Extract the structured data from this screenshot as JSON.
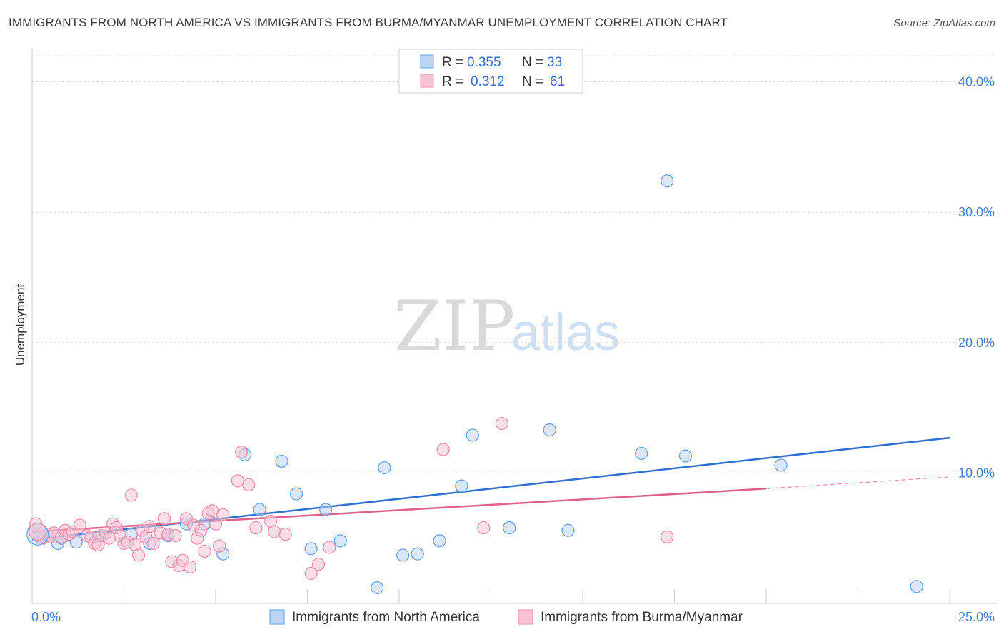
{
  "title": "IMMIGRANTS FROM NORTH AMERICA VS IMMIGRANTS FROM BURMA/MYANMAR UNEMPLOYMENT CORRELATION CHART",
  "source": "Source: ZipAtlas.com",
  "watermark": {
    "zip": "ZIP",
    "atlas": "atlas"
  },
  "legend": {
    "r_label": "R =",
    "n_label": "N =",
    "rows": [
      {
        "r": "0.355",
        "n": "33"
      },
      {
        "r": "0.312",
        "n": "61"
      }
    ]
  },
  "chart_data": {
    "type": "scatter",
    "title": "IMMIGRANTS FROM NORTH AMERICA VS IMMIGRANTS FROM BURMA/MYANMAR UNEMPLOYMENT CORRELATION CHART",
    "xlabel": "",
    "ylabel": "Unemployment",
    "xlim": [
      0,
      25
    ],
    "ylim": [
      0,
      42
    ],
    "x_tick_labels": [
      "0.0%",
      "25.0%"
    ],
    "y_tick_labels": [
      "10.0%",
      "20.0%",
      "30.0%",
      "40.0%"
    ],
    "y_ticks": [
      10,
      20,
      30,
      40
    ],
    "grid": true,
    "legend_position": "top-center",
    "series": [
      {
        "name": "Immigrants from North America",
        "color": "#6a9fe0",
        "fill": "#bcd4f2",
        "line_color": "#2f6fd0",
        "r": 0.355,
        "n": 33,
        "trend": {
          "x": [
            0,
            25
          ],
          "y": [
            4.9,
            12.7
          ]
        },
        "points": [
          [
            0.2,
            5.1
          ],
          [
            0.7,
            4.6
          ],
          [
            1.2,
            4.7
          ],
          [
            1.8,
            5.1
          ],
          [
            2.7,
            5.3
          ],
          [
            3.2,
            4.6
          ],
          [
            3.7,
            5.2
          ],
          [
            4.2,
            6.1
          ],
          [
            4.7,
            6.1
          ],
          [
            5.2,
            3.8
          ],
          [
            5.8,
            11.4
          ],
          [
            6.2,
            7.2
          ],
          [
            6.8,
            10.9
          ],
          [
            7.2,
            8.4
          ],
          [
            7.6,
            4.2
          ],
          [
            8.0,
            7.2
          ],
          [
            8.4,
            4.8
          ],
          [
            9.4,
            1.2
          ],
          [
            9.6,
            10.4
          ],
          [
            10.1,
            3.7
          ],
          [
            10.5,
            3.8
          ],
          [
            11.1,
            4.8
          ],
          [
            11.7,
            9.0
          ],
          [
            12.0,
            12.9
          ],
          [
            13.0,
            5.8
          ],
          [
            14.1,
            13.3
          ],
          [
            14.6,
            5.6
          ],
          [
            16.6,
            11.5
          ],
          [
            17.3,
            32.4
          ],
          [
            17.8,
            11.3
          ],
          [
            20.4,
            10.6
          ],
          [
            24.1,
            1.3
          ],
          [
            0.8,
            5.0
          ]
        ]
      },
      {
        "name": "Immigrants from Burma/Myanmar",
        "color": "#e98fab",
        "fill": "#f6c3d3",
        "line_color": "#e0608c",
        "r": 0.312,
        "n": 61,
        "trend": {
          "x": [
            0,
            20,
            25
          ],
          "y": [
            5.5,
            8.8,
            9.7
          ]
        },
        "trend_solid_until": 20,
        "points": [
          [
            0.1,
            6.1
          ],
          [
            0.3,
            5.0
          ],
          [
            0.4,
            5.3
          ],
          [
            0.5,
            5.1
          ],
          [
            0.6,
            5.4
          ],
          [
            0.8,
            5.1
          ],
          [
            0.9,
            5.6
          ],
          [
            1.0,
            5.3
          ],
          [
            1.1,
            5.5
          ],
          [
            1.3,
            6.0
          ],
          [
            1.5,
            5.2
          ],
          [
            1.6,
            5.1
          ],
          [
            1.7,
            4.6
          ],
          [
            1.8,
            4.5
          ],
          [
            1.9,
            5.2
          ],
          [
            2.0,
            5.4
          ],
          [
            2.1,
            5.0
          ],
          [
            2.2,
            6.1
          ],
          [
            2.3,
            5.8
          ],
          [
            2.4,
            5.2
          ],
          [
            2.5,
            4.6
          ],
          [
            2.6,
            4.7
          ],
          [
            2.7,
            8.3
          ],
          [
            2.8,
            4.5
          ],
          [
            2.9,
            3.7
          ],
          [
            3.0,
            5.6
          ],
          [
            3.1,
            5.1
          ],
          [
            3.2,
            5.9
          ],
          [
            3.3,
            4.6
          ],
          [
            3.5,
            5.4
          ],
          [
            3.6,
            6.5
          ],
          [
            3.7,
            5.3
          ],
          [
            3.8,
            3.2
          ],
          [
            3.9,
            5.2
          ],
          [
            4.0,
            2.9
          ],
          [
            4.1,
            3.3
          ],
          [
            4.2,
            6.5
          ],
          [
            4.3,
            2.8
          ],
          [
            4.4,
            6.0
          ],
          [
            4.5,
            5.0
          ],
          [
            4.6,
            5.6
          ],
          [
            4.7,
            4.0
          ],
          [
            4.8,
            6.9
          ],
          [
            4.9,
            7.1
          ],
          [
            5.0,
            6.1
          ],
          [
            5.1,
            4.4
          ],
          [
            5.2,
            6.8
          ],
          [
            5.6,
            9.4
          ],
          [
            5.7,
            11.6
          ],
          [
            5.9,
            9.1
          ],
          [
            6.1,
            5.8
          ],
          [
            6.5,
            6.3
          ],
          [
            6.6,
            5.5
          ],
          [
            6.9,
            5.3
          ],
          [
            7.6,
            2.3
          ],
          [
            7.8,
            3.0
          ],
          [
            8.1,
            4.3
          ],
          [
            11.2,
            11.8
          ],
          [
            12.3,
            5.8
          ],
          [
            12.8,
            13.8
          ],
          [
            17.3,
            5.1
          ]
        ]
      }
    ]
  }
}
